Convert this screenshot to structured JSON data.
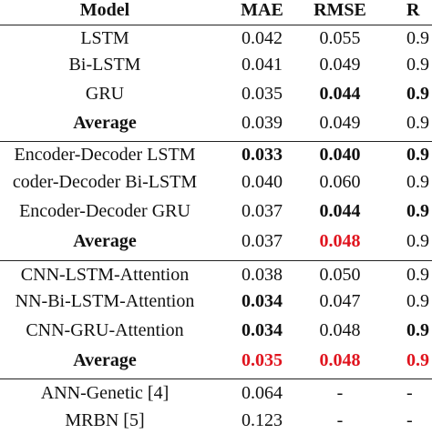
{
  "table": {
    "header": [
      "Model",
      "MAE",
      "RMSE",
      "R"
    ],
    "rows": [
      [
        "LSTM",
        "0.042",
        "0.055",
        "0.9"
      ],
      [
        "Bi-LSTM",
        "0.041",
        "0.049",
        "0.9"
      ],
      [
        "GRU",
        "0.035",
        "0.044",
        "0.9"
      ],
      [
        "Average",
        "0.039",
        "0.049",
        "0.9"
      ],
      [
        "Encoder-Decoder LSTM",
        "0.033",
        "0.040",
        "0.9"
      ],
      [
        "coder-Decoder Bi-LSTM",
        "0.040",
        "0.060",
        "0.9"
      ],
      [
        "Encoder-Decoder GRU",
        "0.037",
        "0.044",
        "0.9"
      ],
      [
        "Average",
        "0.037",
        "0.048",
        "0.9"
      ],
      [
        "CNN-LSTM-Attention",
        "0.038",
        "0.050",
        "0.9"
      ],
      [
        "NN-Bi-LSTM-Attention",
        "0.034",
        "0.047",
        "0.9"
      ],
      [
        "CNN-GRU-Attention",
        "0.034",
        "0.048",
        "0.9"
      ],
      [
        "Average",
        "0.035",
        "0.048",
        "0.9"
      ],
      [
        "ANN-Genetic [4]",
        "0.064",
        "-",
        "-"
      ],
      [
        "MRBN [5]",
        "0.123",
        "-",
        "-"
      ]
    ]
  }
}
